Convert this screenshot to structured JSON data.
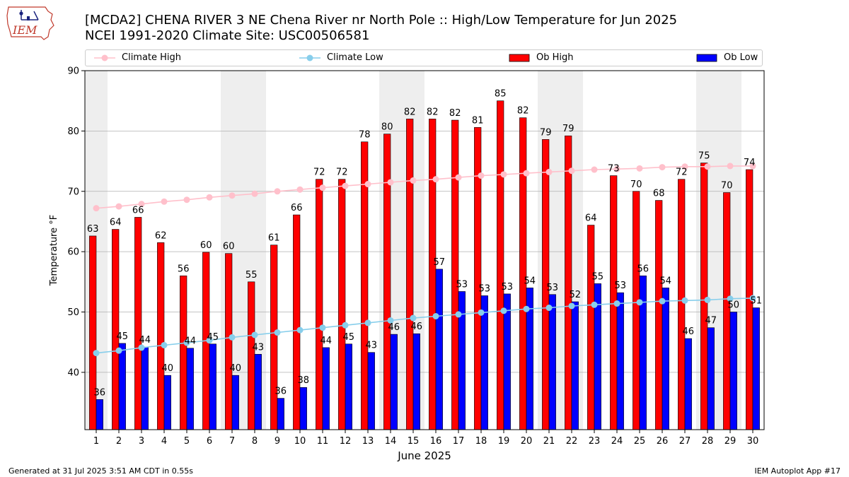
{
  "header": {
    "logo_text": "IEM",
    "title_line1": "[MCDA2] CHENA RIVER 3 NE Chena River nr North Pole :: High/Low Temperature for Jun 2025",
    "title_line2": "NCEI 1991-2020 Climate Site: USC00506581"
  },
  "footer": {
    "generated": "Generated at 31 Jul 2025 3:51 AM CDT in 0.55s",
    "app": "IEM Autoplot App #17"
  },
  "colors": {
    "ob_high": "#ff0000",
    "ob_low": "#0000ff",
    "climate_high": "#ffc0cb",
    "climate_low": "#87ceeb",
    "weekend_shade": "#eeeeee",
    "grid": "#b0b0b0"
  },
  "chart_data": {
    "type": "bar",
    "xlabel": "June 2025",
    "ylabel": "Temperature °F",
    "ylim": [
      30.5,
      90
    ],
    "yticks": [
      40,
      50,
      60,
      70,
      80,
      90
    ],
    "grid": true,
    "legend_position": "top",
    "categories": [
      "1",
      "2",
      "3",
      "4",
      "5",
      "6",
      "7",
      "8",
      "9",
      "10",
      "11",
      "12",
      "13",
      "14",
      "15",
      "16",
      "17",
      "18",
      "19",
      "20",
      "21",
      "22",
      "23",
      "24",
      "25",
      "26",
      "27",
      "28",
      "29",
      "30"
    ],
    "shaded_days": [
      1,
      7,
      8,
      14,
      15,
      21,
      22,
      28,
      29
    ],
    "series": [
      {
        "name": "Climate High",
        "type": "line",
        "values": [
          67.2,
          67.5,
          67.9,
          68.3,
          68.6,
          69.0,
          69.3,
          69.6,
          70.0,
          70.3,
          70.6,
          70.9,
          71.2,
          71.5,
          71.8,
          72.0,
          72.3,
          72.6,
          72.8,
          73.0,
          73.2,
          73.4,
          73.6,
          73.7,
          73.8,
          74.0,
          74.1,
          74.1,
          74.2,
          74.2
        ]
      },
      {
        "name": "Climate Low",
        "type": "line",
        "values": [
          43.2,
          43.6,
          44.1,
          44.5,
          44.9,
          45.3,
          45.8,
          46.2,
          46.6,
          47.0,
          47.4,
          47.8,
          48.2,
          48.6,
          49.0,
          49.3,
          49.6,
          49.9,
          50.2,
          50.5,
          50.7,
          51.0,
          51.2,
          51.4,
          51.6,
          51.8,
          51.9,
          52.0,
          52.2,
          52.3
        ]
      },
      {
        "name": "Ob High",
        "type": "bar",
        "values": [
          62.6,
          63.7,
          65.7,
          61.5,
          56.0,
          59.9,
          59.7,
          55.0,
          61.1,
          66.1,
          72.0,
          72.0,
          78.2,
          79.5,
          82.0,
          82.0,
          81.8,
          80.6,
          85.0,
          82.2,
          78.6,
          79.2,
          64.4,
          72.6,
          70.0,
          68.5,
          72.0,
          74.7,
          69.8,
          73.6
        ],
        "labels": [
          "63",
          "64",
          "66",
          "62",
          "56",
          "60",
          "60",
          "55",
          "61",
          "66",
          "72",
          "72",
          "78",
          "80",
          "82",
          "82",
          "82",
          "81",
          "85",
          "82",
          "79",
          "79",
          "64",
          "73",
          "70",
          "68",
          "72",
          "75",
          "70",
          "74"
        ]
      },
      {
        "name": "Ob Low",
        "type": "bar",
        "values": [
          35.5,
          44.8,
          44.2,
          39.5,
          44.0,
          44.7,
          39.5,
          43.0,
          35.7,
          37.5,
          44.1,
          44.7,
          43.3,
          46.3,
          46.4,
          57.1,
          53.4,
          52.7,
          53.0,
          54.0,
          52.9,
          51.7,
          54.7,
          53.2,
          56.0,
          54.0,
          45.6,
          47.4,
          50.0,
          50.7
        ],
        "labels": [
          "36",
          "45",
          "44",
          "40",
          "44",
          "45",
          "40",
          "43",
          "36",
          "38",
          "44",
          "45",
          "43",
          "46",
          "46",
          "57",
          "53",
          "53",
          "53",
          "54",
          "53",
          "52",
          "55",
          "53",
          "56",
          "54",
          "46",
          "47",
          "50",
          "51"
        ]
      }
    ]
  }
}
